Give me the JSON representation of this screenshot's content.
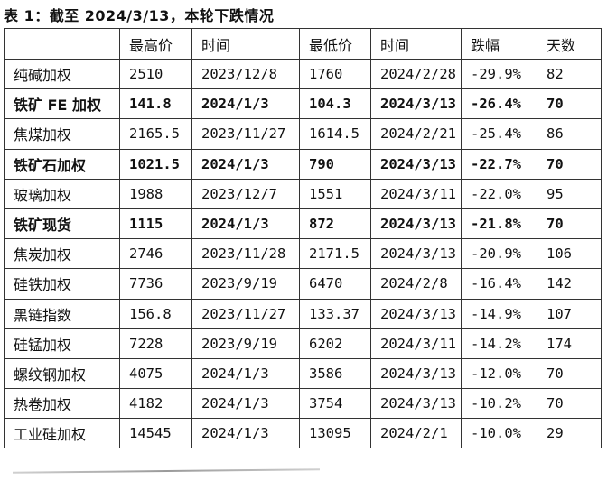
{
  "title": "表 1：截至 2024/3/13，本轮下跌情况",
  "table": {
    "headers": [
      "",
      "最高价",
      "时间",
      "最低价",
      "时间",
      "跌幅",
      "天数"
    ],
    "rows": [
      {
        "bold": false,
        "cells": [
          "纯碱加权",
          "2510",
          "2023/12/8",
          "1760",
          "2024/2/28",
          "-29.9%",
          "82"
        ]
      },
      {
        "bold": true,
        "cells": [
          "铁矿 FE 加权",
          "141.8",
          "2024/1/3",
          "104.3",
          "2024/3/13",
          "-26.4%",
          "70"
        ]
      },
      {
        "bold": false,
        "cells": [
          "焦煤加权",
          "2165.5",
          "2023/11/27",
          "1614.5",
          "2024/2/21",
          "-25.4%",
          "86"
        ]
      },
      {
        "bold": true,
        "cells": [
          "铁矿石加权",
          "1021.5",
          "2024/1/3",
          "790",
          "2024/3/13",
          "-22.7%",
          "70"
        ]
      },
      {
        "bold": false,
        "cells": [
          "玻璃加权",
          "1988",
          "2023/12/7",
          "1551",
          "2024/3/11",
          "-22.0%",
          "95"
        ]
      },
      {
        "bold": true,
        "cells": [
          "铁矿现货",
          "1115",
          "2024/1/3",
          "872",
          "2024/3/13",
          "-21.8%",
          "70"
        ]
      },
      {
        "bold": false,
        "cells": [
          "焦炭加权",
          "2746",
          "2023/11/28",
          "2171.5",
          "2024/3/13",
          "-20.9%",
          "106"
        ]
      },
      {
        "bold": false,
        "cells": [
          "硅铁加权",
          "7736",
          "2023/9/19",
          "6470",
          "2024/2/8",
          "-16.4%",
          "142"
        ]
      },
      {
        "bold": false,
        "cells": [
          "黑链指数",
          "156.8",
          "2023/11/27",
          "133.37",
          "2024/3/13",
          "-14.9%",
          "107"
        ]
      },
      {
        "bold": false,
        "cells": [
          "硅锰加权",
          "7228",
          "2023/9/19",
          "6202",
          "2024/3/11",
          "-14.2%",
          "174"
        ]
      },
      {
        "bold": false,
        "cells": [
          "螺纹钢加权",
          "4075",
          "2024/1/3",
          "3586",
          "2024/3/13",
          "-12.0%",
          "70"
        ]
      },
      {
        "bold": false,
        "cells": [
          "热卷加权",
          "4182",
          "2024/1/3",
          "3754",
          "2024/3/13",
          "-10.2%",
          "70"
        ]
      },
      {
        "bold": false,
        "cells": [
          "工业硅加权",
          "14545",
          "2024/1/3",
          "13095",
          "2024/2/1",
          "-10.0%",
          "29"
        ]
      }
    ]
  }
}
